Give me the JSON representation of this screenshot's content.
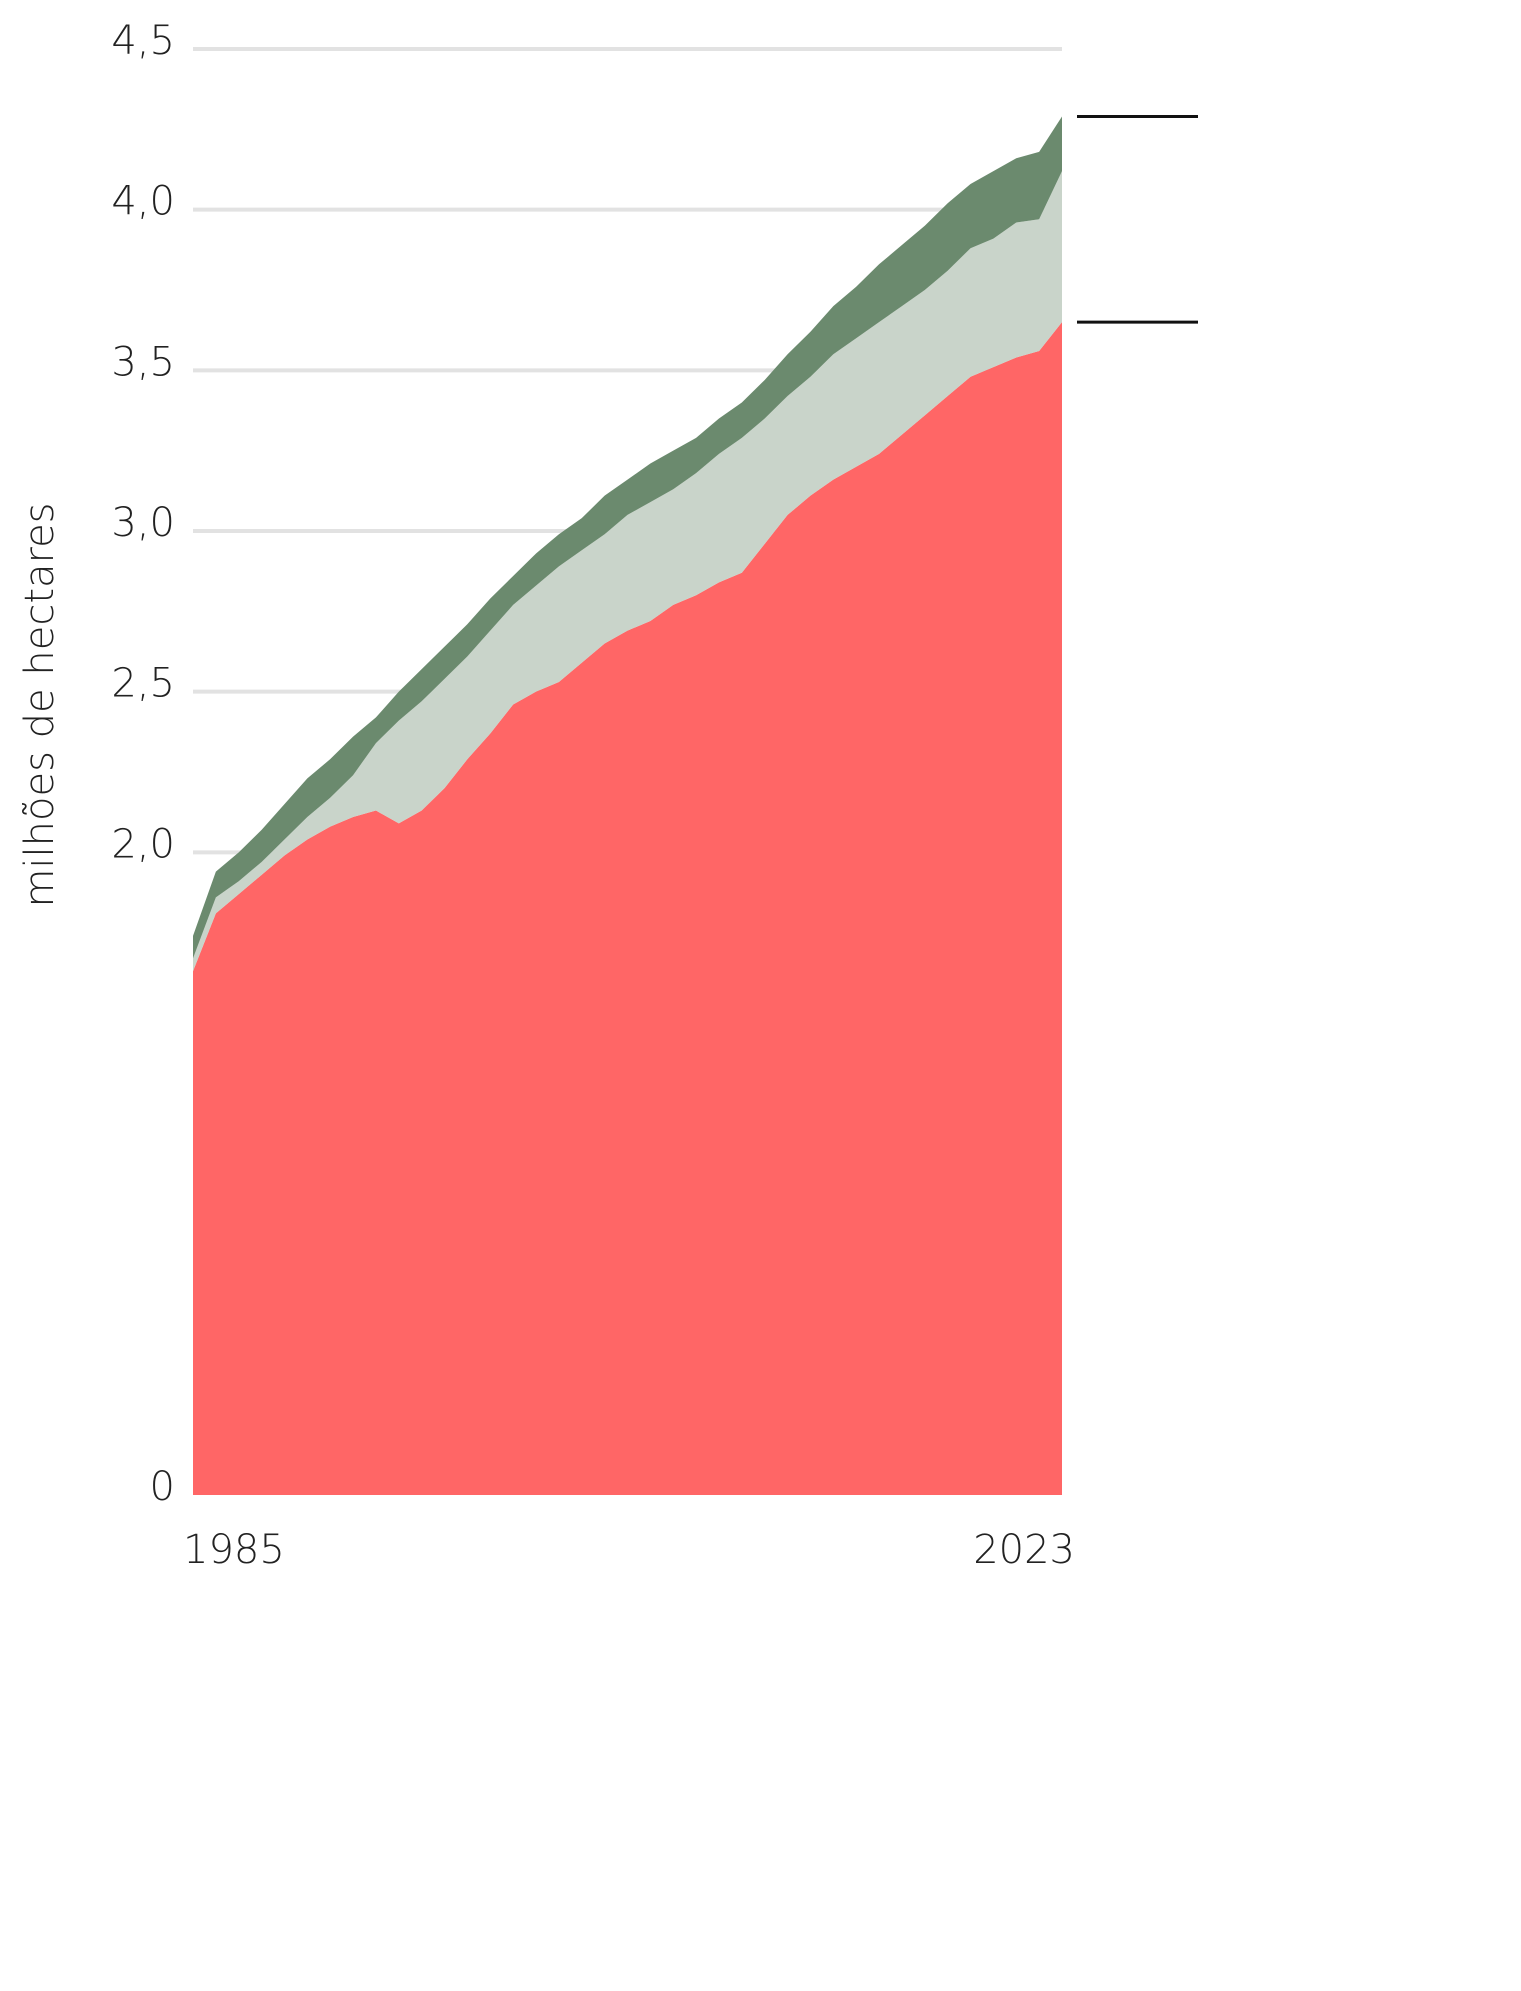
{
  "chart_data": {
    "type": "stacked_area",
    "y_label": "milhões de hectares",
    "x": [
      1985,
      1986,
      1987,
      1988,
      1989,
      1990,
      1991,
      1992,
      1993,
      1994,
      1995,
      1996,
      1997,
      1998,
      1999,
      2000,
      2001,
      2002,
      2003,
      2004,
      2005,
      2006,
      2007,
      2008,
      2009,
      2010,
      2011,
      2012,
      2013,
      2014,
      2015,
      2016,
      2017,
      2018,
      2019,
      2020,
      2021,
      2022,
      2023
    ],
    "xlim": [
      1985,
      2023
    ],
    "xticks": [
      1985,
      2023
    ],
    "ylim": [
      0,
      4.5
    ],
    "yticks": [
      {
        "value": 0,
        "label": "0"
      },
      {
        "value": 2.0,
        "label": "2,0"
      },
      {
        "value": 2.5,
        "label": "2,5"
      },
      {
        "value": 3.0,
        "label": "3,0"
      },
      {
        "value": 3.5,
        "label": "3,5"
      },
      {
        "value": 4.0,
        "label": "4,0"
      },
      {
        "value": 4.5,
        "label": "4,5"
      }
    ],
    "grid": true,
    "series": [
      {
        "color": "#ff6666",
        "values": [
          1.63,
          1.81,
          1.87,
          1.93,
          1.99,
          2.04,
          2.08,
          2.11,
          2.13,
          2.09,
          2.13,
          2.2,
          2.29,
          2.37,
          2.46,
          2.5,
          2.53,
          2.59,
          2.65,
          2.69,
          2.72,
          2.77,
          2.8,
          2.84,
          2.87,
          2.96,
          3.05,
          3.11,
          3.16,
          3.2,
          3.24,
          3.3,
          3.36,
          3.42,
          3.48,
          3.51,
          3.54,
          3.56,
          3.65
        ]
      },
      {
        "color": "#c9d4ca",
        "values": [
          0.04,
          0.05,
          0.04,
          0.04,
          0.05,
          0.07,
          0.09,
          0.13,
          0.21,
          0.32,
          0.34,
          0.34,
          0.32,
          0.32,
          0.31,
          0.33,
          0.36,
          0.35,
          0.34,
          0.36,
          0.37,
          0.36,
          0.38,
          0.4,
          0.42,
          0.39,
          0.37,
          0.37,
          0.39,
          0.4,
          0.41,
          0.4,
          0.39,
          0.39,
          0.4,
          0.4,
          0.42,
          0.41,
          0.47
        ]
      },
      {
        "color": "#6b8a6e",
        "values": [
          0.07,
          0.08,
          0.09,
          0.1,
          0.11,
          0.12,
          0.12,
          0.12,
          0.08,
          0.09,
          0.1,
          0.1,
          0.1,
          0.1,
          0.09,
          0.1,
          0.1,
          0.1,
          0.12,
          0.11,
          0.12,
          0.12,
          0.11,
          0.11,
          0.11,
          0.12,
          0.13,
          0.14,
          0.15,
          0.16,
          0.18,
          0.19,
          0.2,
          0.21,
          0.2,
          0.21,
          0.2,
          0.21,
          0.17
        ]
      }
    ]
  }
}
